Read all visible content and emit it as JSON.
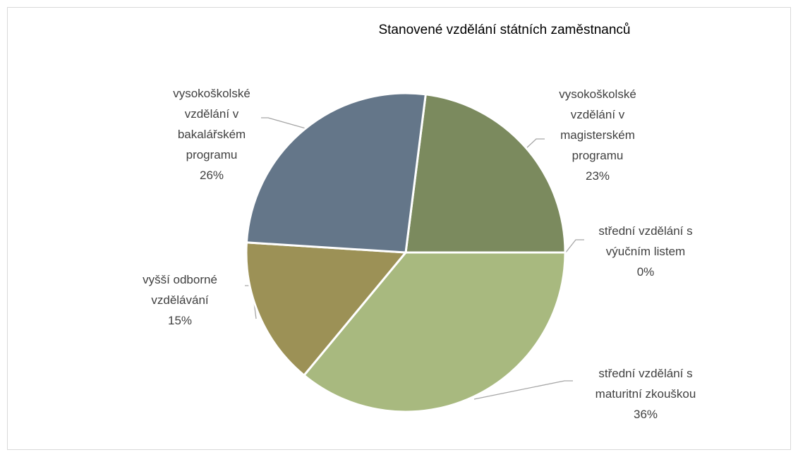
{
  "chart_data": {
    "type": "pie",
    "title": "Stanovené vzdělání státních zaměstnanců",
    "categories": [
      "vysokoškolské vzdělání v magisterském programu",
      "střední vzdělání s výučním listem",
      "střední vzdělání s maturitní zkouškou",
      "vyšší odborné vzdělávání",
      "vysokoškolské vzdělání v bakalářském programu"
    ],
    "values": [
      23,
      0,
      36,
      15,
      26
    ],
    "value_labels": [
      "23%",
      "0%",
      "36%",
      "15%",
      "26%"
    ],
    "colors": [
      "#7b8a5e",
      "#8aa0b0",
      "#a8b97f",
      "#9c9156",
      "#647689"
    ]
  }
}
